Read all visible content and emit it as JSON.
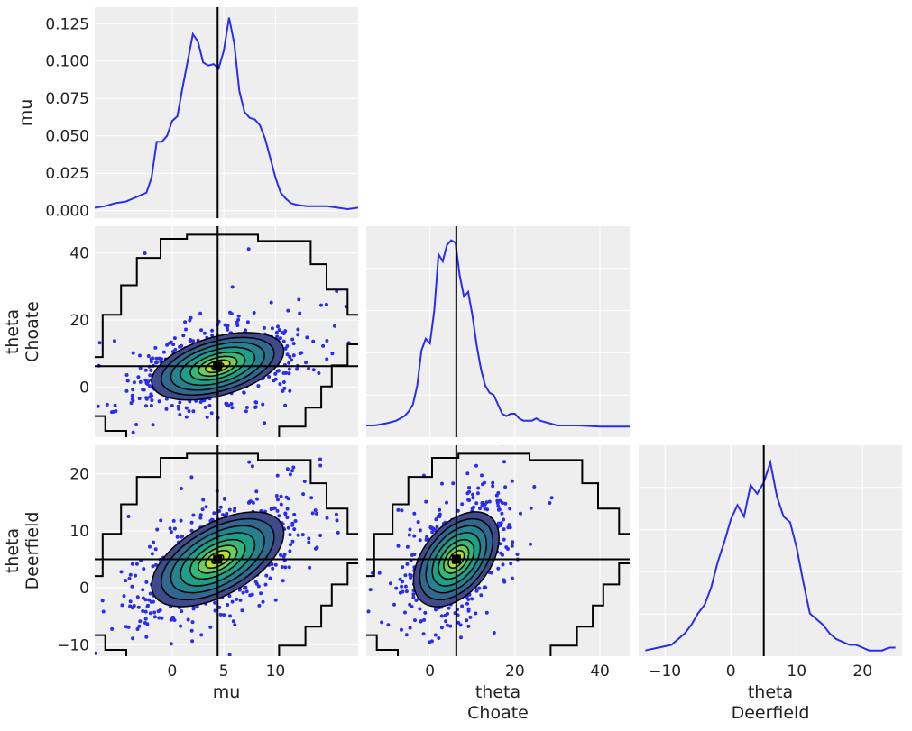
{
  "chart_data": {
    "type": "pair",
    "title": "",
    "variables": [
      {
        "name": "mu",
        "label_lines": [
          "mu"
        ]
      },
      {
        "name": "theta Choate",
        "label_lines": [
          "theta",
          "Choate"
        ]
      },
      {
        "name": "theta Deerfield",
        "label_lines": [
          "theta",
          "Deerfield"
        ]
      }
    ],
    "reference_values": {
      "mu": 4.4,
      "theta Choate": 6.2,
      "theta Deerfield": 5.0
    },
    "colors": {
      "kde": "#2a2eec",
      "scatter": "#2a2eec",
      "reference": "#000000",
      "hdi_contour": "#000000",
      "panel_bg": "#eeeeee",
      "contour_fill": [
        "#3e4a89",
        "#31688e",
        "#26828e",
        "#1f9e89",
        "#35b779",
        "#6ece58",
        "#b5de2b",
        "#fde725"
      ]
    },
    "panels": [
      {
        "id": "mu-kde",
        "type": "kde",
        "row": 0,
        "col": 0,
        "variable": "mu",
        "xlim": [
          -7.5,
          18
        ],
        "ylim": [
          -0.005,
          0.136
        ],
        "xticks": [
          0,
          5,
          10
        ],
        "yticks": [
          0.0,
          0.025,
          0.05,
          0.075,
          0.1,
          0.125
        ],
        "ytick_labels": [
          "0.000",
          "0.025",
          "0.050",
          "0.075",
          "0.100",
          "0.125"
        ],
        "ylabel_lines": [
          "mu"
        ],
        "x": [
          -7.5,
          -6.5,
          -5.5,
          -4.5,
          -3.5,
          -2.5,
          -2.0,
          -1.5,
          -1.0,
          -0.5,
          0.0,
          0.5,
          1.0,
          1.5,
          2.0,
          2.5,
          3.0,
          3.5,
          4.0,
          4.5,
          5.0,
          5.5,
          6.0,
          6.5,
          7.0,
          7.5,
          8.0,
          8.5,
          9.0,
          9.5,
          10.0,
          10.5,
          11.0,
          11.5,
          12.0,
          13.0,
          14.0,
          15.0,
          16.0,
          17.0,
          18.0
        ],
        "y": [
          0.002,
          0.003,
          0.005,
          0.006,
          0.009,
          0.012,
          0.022,
          0.046,
          0.046,
          0.05,
          0.06,
          0.063,
          0.082,
          0.1,
          0.118,
          0.113,
          0.099,
          0.097,
          0.098,
          0.095,
          0.107,
          0.129,
          0.112,
          0.08,
          0.066,
          0.062,
          0.061,
          0.057,
          0.048,
          0.035,
          0.022,
          0.012,
          0.008,
          0.005,
          0.004,
          0.003,
          0.003,
          0.003,
          0.002,
          0.001,
          0.002
        ]
      },
      {
        "id": "choate-vs-mu",
        "type": "scatter_kde",
        "row": 1,
        "col": 0,
        "xvar": "mu",
        "yvar": "theta Choate",
        "xlim": [
          -7.5,
          18
        ],
        "ylim": [
          -15,
          48
        ],
        "xticks": [
          0,
          5,
          10
        ],
        "yticks": [
          0,
          20,
          40
        ],
        "ylabel_lines": [
          "theta",
          "Choate"
        ],
        "center": [
          4.4,
          6.2
        ],
        "sx": 4.0,
        "sy": 6.3,
        "rho": 0.45,
        "n_points": 700
      },
      {
        "id": "choate-kde",
        "type": "kde",
        "row": 1,
        "col": 1,
        "variable": "theta Choate",
        "xlim": [
          -15,
          47
        ],
        "ylim": [
          -0.004,
          0.086
        ],
        "xticks": [
          0,
          20,
          40
        ],
        "yticks": [],
        "x": [
          -15,
          -13,
          -10,
          -8,
          -6,
          -5,
          -4,
          -3,
          -2,
          -1,
          0,
          1,
          2,
          3,
          4,
          5,
          6,
          7,
          8,
          9,
          10,
          11,
          12,
          13,
          14,
          15,
          16,
          17,
          18,
          19,
          20,
          21,
          22,
          23,
          24,
          25,
          26,
          28,
          30,
          35,
          40,
          47
        ],
        "y": [
          0.001,
          0.001,
          0.002,
          0.003,
          0.005,
          0.007,
          0.01,
          0.018,
          0.033,
          0.038,
          0.036,
          0.05,
          0.074,
          0.071,
          0.078,
          0.08,
          0.079,
          0.065,
          0.056,
          0.058,
          0.048,
          0.035,
          0.025,
          0.018,
          0.015,
          0.014,
          0.01,
          0.006,
          0.005,
          0.006,
          0.006,
          0.004,
          0.003,
          0.003,
          0.003,
          0.004,
          0.003,
          0.002,
          0.001,
          0.001,
          0.0005,
          0.0005
        ]
      },
      {
        "id": "deerfield-vs-mu",
        "type": "scatter_kde",
        "row": 2,
        "col": 0,
        "xvar": "mu",
        "yvar": "theta Deerfield",
        "xlim": [
          -7.5,
          18
        ],
        "ylim": [
          -12,
          25
        ],
        "xticks": [
          0,
          5,
          10
        ],
        "yticks": [
          -10,
          0,
          10,
          20
        ],
        "xlabel_lines": [
          "mu"
        ],
        "ylabel_lines": [
          "theta",
          "Deerfield"
        ],
        "center": [
          4.4,
          5.0
        ],
        "sx": 4.0,
        "sy": 5.2,
        "rho": 0.55,
        "n_points": 800
      },
      {
        "id": "deerfield-vs-choate",
        "type": "scatter_kde",
        "row": 2,
        "col": 1,
        "xvar": "theta Choate",
        "yvar": "theta Deerfield",
        "xlim": [
          -15,
          47
        ],
        "ylim": [
          -12,
          25
        ],
        "xticks": [
          0,
          20,
          40
        ],
        "yticks": [],
        "xlabel_lines": [
          "theta",
          "Choate"
        ],
        "center": [
          6.2,
          5.0
        ],
        "sx": 6.3,
        "sy": 5.2,
        "rho": 0.45,
        "n_points": 700
      },
      {
        "id": "deerfield-kde",
        "type": "kde",
        "row": 2,
        "col": 2,
        "variable": "theta Deerfield",
        "xlim": [
          -14,
          26
        ],
        "ylim": [
          -0.002,
          0.072
        ],
        "xticks": [
          -10,
          0,
          10,
          20
        ],
        "yticks": [],
        "xlabel_lines": [
          "theta",
          "Deerfield"
        ],
        "x": [
          -13,
          -11,
          -9,
          -8,
          -7,
          -6,
          -5,
          -4,
          -3,
          -2,
          -1,
          0,
          1,
          2,
          3,
          4,
          5,
          6,
          7,
          8,
          9,
          10,
          11,
          12,
          13,
          14,
          15,
          16,
          17,
          18,
          19,
          20,
          21,
          22,
          23,
          24,
          25
        ],
        "y": [
          0.0,
          0.001,
          0.002,
          0.004,
          0.006,
          0.009,
          0.013,
          0.016,
          0.022,
          0.031,
          0.038,
          0.046,
          0.051,
          0.047,
          0.058,
          0.055,
          0.059,
          0.066,
          0.054,
          0.047,
          0.045,
          0.036,
          0.024,
          0.013,
          0.011,
          0.009,
          0.006,
          0.004,
          0.003,
          0.002,
          0.002,
          0.001,
          0.0,
          0.0,
          0.0,
          0.001,
          0.001
        ]
      }
    ]
  }
}
